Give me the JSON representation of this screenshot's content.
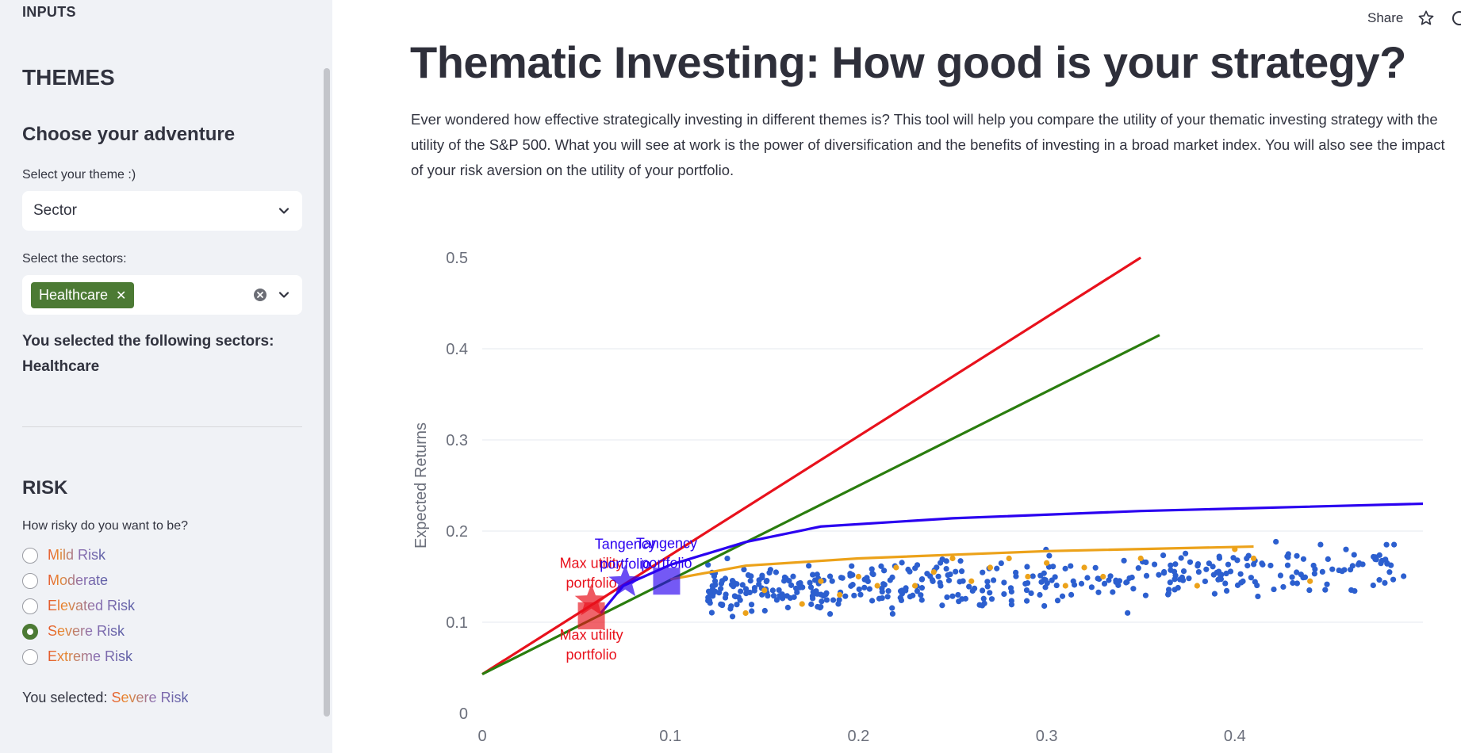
{
  "sidebar": {
    "header": "INPUTS",
    "themes_title": "THEMES",
    "adventure_title": "Choose your adventure",
    "theme_label": "Select your theme :)",
    "theme_value": "Sector",
    "sectors_label": "Select the sectors:",
    "selected_tags": [
      "Healthcare"
    ],
    "selected_text": "You selected the following sectors:",
    "selected_value": "Healthcare",
    "risk_title": "RISK",
    "risk_question": "How risky do you want to be?",
    "risk_options": [
      "Mild Risk",
      "Moderate",
      "Elevated Risk",
      "Severe Risk",
      "Extreme Risk"
    ],
    "risk_selected": "Severe Risk",
    "you_selected_label": "You selected:",
    "you_selected_value": "Severe Risk"
  },
  "topbar": {
    "share_label": "Share",
    "star_icon": "star-icon",
    "menu_icon": "menu-icon"
  },
  "main": {
    "title": "Thematic Investing: How good is your strategy?",
    "description": "Ever wondered how effective strategically investing in different themes is? This tool will help you compare the utility of your thematic investing strategy with the utility of the S&P 500. What you will see at work is the power of diversification and the benefits of investing in a broad market index. You will also see the impact of your risk aversion on the utility of your portfolio."
  },
  "colors": {
    "sidebar_bg": "#f0f2f6",
    "tag_green": "#4c7a34",
    "red": "#e8111c",
    "green": "#2a7d0e",
    "blue": "#2a00f0",
    "orange": "#eca21a",
    "scatter_blue": "#2c5fcf"
  },
  "chart_data": {
    "type": "scatter",
    "ylabel": "Expected Returns",
    "xlabel": "",
    "xlim": [
      0,
      0.5
    ],
    "ylim": [
      0,
      0.5
    ],
    "x_ticks": [
      "0",
      "0.1",
      "0.2",
      "0.3",
      "0.4"
    ],
    "y_ticks": [
      "0",
      "0.1",
      "0.2",
      "0.3",
      "0.4",
      "0.5"
    ],
    "lines": [
      {
        "color": "red",
        "points": [
          [
            0,
            0.043
          ],
          [
            0.35,
            0.5
          ]
        ]
      },
      {
        "color": "green",
        "points": [
          [
            0,
            0.043
          ],
          [
            0.36,
            0.415
          ]
        ]
      },
      {
        "color": "blue",
        "points": [
          [
            0.063,
            0.11
          ],
          [
            0.075,
            0.14
          ],
          [
            0.1,
            0.163
          ],
          [
            0.14,
            0.188
          ],
          [
            0.18,
            0.205
          ],
          [
            0.25,
            0.214
          ],
          [
            0.35,
            0.222
          ],
          [
            0.5,
            0.23
          ]
        ]
      },
      {
        "color": "orange",
        "points": [
          [
            0.1,
            0.147
          ],
          [
            0.14,
            0.162
          ],
          [
            0.2,
            0.17
          ],
          [
            0.3,
            0.178
          ],
          [
            0.41,
            0.183
          ]
        ]
      }
    ],
    "markers": [
      {
        "shape": "star",
        "color": "red",
        "x": 0.058,
        "y": 0.123,
        "label": "Max utility portfolio",
        "label_pos": "above"
      },
      {
        "shape": "square",
        "color": "red",
        "x": 0.058,
        "y": 0.107,
        "label": "Max utility portfolio",
        "label_pos": "below"
      },
      {
        "shape": "star",
        "color": "blue",
        "x": 0.076,
        "y": 0.144,
        "label": "Tangency portfolio",
        "label_pos": "above"
      },
      {
        "shape": "square",
        "color": "blue",
        "x": 0.098,
        "y": 0.145,
        "label": "Tangency portfolio",
        "label_pos": "above"
      }
    ],
    "scatter_orange": [
      [
        0.14,
        0.11
      ],
      [
        0.15,
        0.135
      ],
      [
        0.17,
        0.12
      ],
      [
        0.18,
        0.145
      ],
      [
        0.19,
        0.13
      ],
      [
        0.2,
        0.15
      ],
      [
        0.21,
        0.14
      ],
      [
        0.22,
        0.16
      ],
      [
        0.23,
        0.14
      ],
      [
        0.24,
        0.155
      ],
      [
        0.25,
        0.17
      ],
      [
        0.26,
        0.145
      ],
      [
        0.27,
        0.16
      ],
      [
        0.28,
        0.17
      ],
      [
        0.29,
        0.15
      ],
      [
        0.3,
        0.165
      ],
      [
        0.31,
        0.14
      ],
      [
        0.32,
        0.16
      ],
      [
        0.33,
        0.15
      ],
      [
        0.35,
        0.17
      ],
      [
        0.38,
        0.14
      ],
      [
        0.4,
        0.18
      ],
      [
        0.41,
        0.17
      ],
      [
        0.44,
        0.145
      ]
    ],
    "scatter_blue_count": 420
  }
}
